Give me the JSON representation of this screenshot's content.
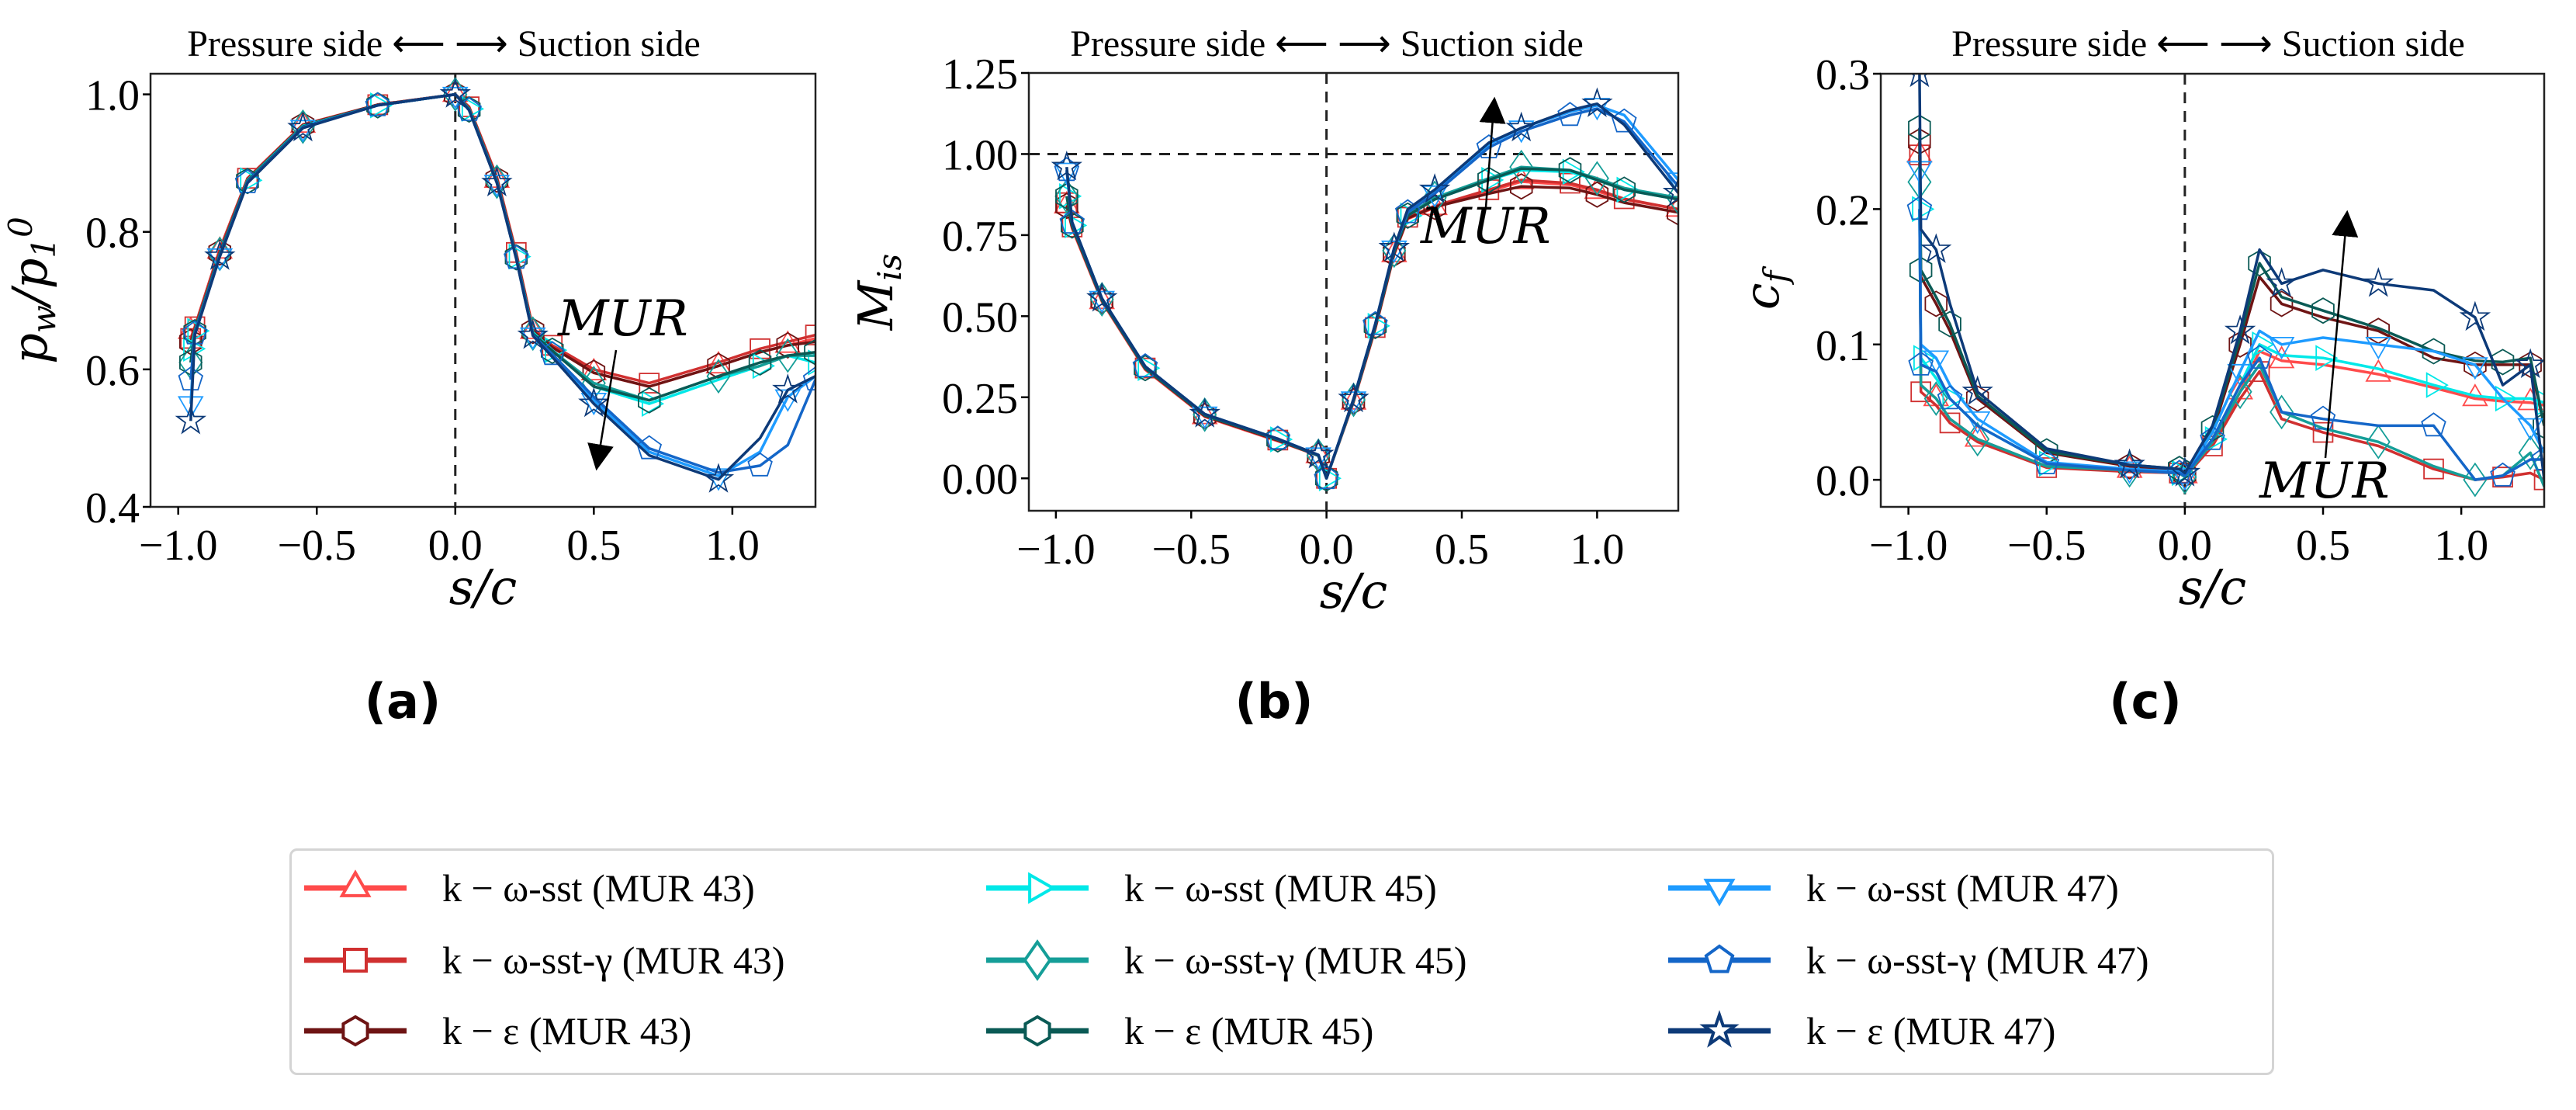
{
  "colors": {
    "sst_43": "#ff4b4b",
    "gamma_43": "#d03030",
    "eps_43": "#6e1414",
    "sst_45": "#00e8e8",
    "gamma_45": "#159e98",
    "eps_45": "#0a5a55",
    "sst_47": "#1e9bff",
    "gamma_47": "#1466c8",
    "eps_47": "#0d3a78"
  },
  "series_meta": [
    {
      "key": "sst_43",
      "label": "k − ω-sst (MUR 43)",
      "marker": "triangle-up"
    },
    {
      "key": "gamma_43",
      "label": "k − ω-sst-γ (MUR 43)",
      "marker": "square"
    },
    {
      "key": "eps_43",
      "label": "k − ε (MUR 43)",
      "marker": "hexagon"
    },
    {
      "key": "sst_45",
      "label": "k − ω-sst (MUR 45)",
      "marker": "triangle-right"
    },
    {
      "key": "gamma_45",
      "label": "k − ω-sst-γ (MUR 45)",
      "marker": "diamond"
    },
    {
      "key": "eps_45",
      "label": "k − ε (MUR 45)",
      "marker": "hexagon"
    },
    {
      "key": "sst_47",
      "label": "k − ω-sst (MUR 47)",
      "marker": "triangle-down"
    },
    {
      "key": "gamma_47",
      "label": "k − ω-sst-γ (MUR 47)",
      "marker": "pentagon"
    },
    {
      "key": "eps_47",
      "label": "k − ε (MUR 47)",
      "marker": "star"
    }
  ],
  "chart_data": [
    {
      "type": "line",
      "panel_label": "(a)",
      "title": "Pressure side ⟵ ⟶ Suction side",
      "xlabel": "s/c",
      "ylabel_parts": [
        [
          "p",
          ""
        ],
        [
          "w",
          "sub"
        ],
        [
          "/p",
          ""
        ],
        [
          "1",
          "sub"
        ],
        [
          "0",
          "sup"
        ]
      ],
      "annotation": "MUR",
      "annotation_direction": "down",
      "xlim": [
        -1.1,
        1.3
      ],
      "ylim": [
        0.4,
        1.03
      ],
      "xticks": [
        {
          "v": -1.0,
          "t": "−1.0"
        },
        {
          "v": -0.5,
          "t": "−0.5"
        },
        {
          "v": 0,
          "t": "0.0"
        },
        {
          "v": 0.5,
          "t": "0.5"
        },
        {
          "v": 1.0,
          "t": "1.0"
        }
      ],
      "yticks": [
        {
          "v": 0.4,
          "t": "0.4"
        },
        {
          "v": 0.6,
          "t": "0.6"
        },
        {
          "v": 0.8,
          "t": "0.8"
        },
        {
          "v": 1.0,
          "t": "1.0"
        }
      ],
      "vline": 0,
      "hline": null,
      "x": [
        -0.955,
        -0.94,
        -0.85,
        -0.75,
        -0.55,
        -0.28,
        0,
        0.05,
        0.15,
        0.22,
        0.28,
        0.35,
        0.5,
        0.7,
        0.95,
        1.1,
        1.2,
        1.3
      ],
      "series": [
        {
          "name": "k − ω-sst (MUR 43)",
          "y": [
            0.655,
            0.66,
            0.772,
            0.877,
            0.955,
            0.985,
            1.0,
            0.98,
            0.875,
            0.765,
            0.655,
            0.632,
            0.595,
            0.575,
            0.605,
            0.625,
            0.635,
            0.645
          ]
        },
        {
          "name": "k − ω-sst-γ (MUR 43)",
          "y": [
            0.645,
            0.662,
            0.775,
            0.878,
            0.956,
            0.985,
            1.0,
            0.982,
            0.88,
            0.77,
            0.66,
            0.635,
            0.6,
            0.58,
            0.61,
            0.63,
            0.64,
            0.65
          ]
        },
        {
          "name": "k − ε (MUR 43)",
          "y": [
            0.64,
            0.658,
            0.77,
            0.876,
            0.955,
            0.985,
            1.0,
            0.98,
            0.876,
            0.766,
            0.656,
            0.632,
            0.595,
            0.575,
            0.605,
            0.625,
            0.635,
            0.64
          ]
        },
        {
          "name": "k − ω-sst (MUR 45)",
          "y": [
            0.63,
            0.656,
            0.768,
            0.875,
            0.954,
            0.984,
            1.0,
            0.979,
            0.874,
            0.764,
            0.654,
            0.628,
            0.575,
            0.55,
            0.585,
            0.605,
            0.62,
            0.61
          ]
        },
        {
          "name": "k − ω-sst-γ (MUR 45)",
          "y": [
            0.61,
            0.655,
            0.768,
            0.874,
            0.953,
            0.984,
            1.0,
            0.978,
            0.873,
            0.763,
            0.652,
            0.627,
            0.58,
            0.555,
            0.59,
            0.605,
            0.62,
            0.62
          ]
        },
        {
          "name": "k − ε (MUR 45)",
          "y": [
            0.61,
            0.654,
            0.767,
            0.874,
            0.953,
            0.984,
            1.0,
            0.978,
            0.873,
            0.763,
            0.652,
            0.627,
            0.575,
            0.555,
            0.59,
            0.61,
            0.62,
            0.625
          ]
        },
        {
          "name": "k − ω-sst (MUR 47)",
          "y": [
            0.55,
            0.652,
            0.765,
            0.872,
            0.952,
            0.984,
            1.0,
            0.977,
            0.872,
            0.762,
            0.65,
            0.62,
            0.555,
            0.48,
            0.445,
            0.48,
            0.56,
            0.59
          ]
        },
        {
          "name": "k − ω-sst-γ (MUR 47)",
          "y": [
            0.585,
            0.652,
            0.765,
            0.872,
            0.952,
            0.984,
            1.0,
            0.977,
            0.872,
            0.762,
            0.65,
            0.622,
            0.56,
            0.485,
            0.45,
            0.46,
            0.49,
            0.585
          ]
        },
        {
          "name": "k − ε (MUR 47)",
          "y": [
            0.525,
            0.65,
            0.764,
            0.871,
            0.951,
            0.984,
            1.0,
            0.977,
            0.871,
            0.761,
            0.649,
            0.618,
            0.55,
            0.475,
            0.44,
            0.5,
            0.57,
            0.59
          ]
        }
      ]
    },
    {
      "type": "line",
      "panel_label": "(b)",
      "title": "Pressure side ⟵ ⟶ Suction side",
      "xlabel": "s/c",
      "ylabel_parts": [
        [
          "M",
          ""
        ],
        [
          "is",
          "sub"
        ]
      ],
      "annotation": "MUR",
      "annotation_direction": "up",
      "xlim": [
        -1.1,
        1.3
      ],
      "ylim": [
        -0.1,
        1.25
      ],
      "xticks": [
        {
          "v": -1.0,
          "t": "−1.0"
        },
        {
          "v": -0.5,
          "t": "−0.5"
        },
        {
          "v": 0,
          "t": "0.0"
        },
        {
          "v": 0.5,
          "t": "0.5"
        },
        {
          "v": 1.0,
          "t": "1.0"
        }
      ],
      "yticks": [
        {
          "v": 0,
          "t": "0.00"
        },
        {
          "v": 0.25,
          "t": "0.25"
        },
        {
          "v": 0.5,
          "t": "0.50"
        },
        {
          "v": 0.75,
          "t": "0.75"
        },
        {
          "v": 1.0,
          "t": "1.00"
        },
        {
          "v": 1.25,
          "t": "1.25"
        }
      ],
      "vline": 0,
      "hline": 1.0,
      "x": [
        -0.96,
        -0.94,
        -0.83,
        -0.67,
        -0.45,
        -0.18,
        -0.03,
        0,
        0.1,
        0.18,
        0.25,
        0.3,
        0.4,
        0.6,
        0.72,
        0.9,
        1.0,
        1.1,
        1.3
      ],
      "series": [
        {
          "name": "k − ω-sst (MUR 43)",
          "y": [
            0.84,
            0.77,
            0.545,
            0.335,
            0.19,
            0.115,
            0.07,
            0.0,
            0.235,
            0.46,
            0.69,
            0.8,
            0.835,
            0.885,
            0.915,
            0.905,
            0.885,
            0.86,
            0.83
          ]
        },
        {
          "name": "k − ω-sst-γ (MUR 43)",
          "y": [
            0.85,
            0.775,
            0.55,
            0.34,
            0.193,
            0.118,
            0.07,
            0.0,
            0.24,
            0.465,
            0.695,
            0.805,
            0.84,
            0.89,
            0.92,
            0.91,
            0.89,
            0.862,
            0.83
          ]
        },
        {
          "name": "k − ε (MUR 43)",
          "y": [
            0.84,
            0.775,
            0.548,
            0.338,
            0.192,
            0.117,
            0.07,
            0.0,
            0.238,
            0.463,
            0.693,
            0.802,
            0.837,
            0.878,
            0.9,
            0.895,
            0.875,
            0.85,
            0.82
          ]
        },
        {
          "name": "k − ω-sst (MUR 45)",
          "y": [
            0.87,
            0.78,
            0.55,
            0.34,
            0.195,
            0.12,
            0.07,
            0.0,
            0.24,
            0.47,
            0.7,
            0.81,
            0.86,
            0.92,
            0.95,
            0.945,
            0.92,
            0.89,
            0.86
          ]
        },
        {
          "name": "k − ω-sst-γ (MUR 45)",
          "y": [
            0.87,
            0.782,
            0.552,
            0.342,
            0.196,
            0.12,
            0.07,
            0.0,
            0.242,
            0.472,
            0.702,
            0.812,
            0.865,
            0.925,
            0.96,
            0.95,
            0.925,
            0.895,
            0.865
          ]
        },
        {
          "name": "k − ε (MUR 45)",
          "y": [
            0.87,
            0.78,
            0.55,
            0.34,
            0.195,
            0.12,
            0.07,
            0.0,
            0.24,
            0.47,
            0.7,
            0.81,
            0.86,
            0.92,
            0.955,
            0.95,
            0.92,
            0.89,
            0.86
          ]
        },
        {
          "name": "k − ω-sst (MUR 47)",
          "y": [
            0.95,
            0.79,
            0.555,
            0.345,
            0.198,
            0.122,
            0.072,
            0.0,
            0.245,
            0.475,
            0.71,
            0.82,
            0.88,
            1.03,
            1.08,
            1.13,
            1.15,
            1.12,
            0.92
          ]
        },
        {
          "name": "k − ω-sst-γ (MUR 47)",
          "y": [
            0.95,
            0.788,
            0.555,
            0.345,
            0.198,
            0.122,
            0.072,
            0.0,
            0.245,
            0.475,
            0.708,
            0.82,
            0.878,
            1.02,
            1.07,
            1.12,
            1.14,
            1.1,
            0.9
          ]
        },
        {
          "name": "k − ε (MUR 47)",
          "y": [
            0.96,
            0.79,
            0.555,
            0.345,
            0.198,
            0.122,
            0.072,
            0.0,
            0.245,
            0.475,
            0.71,
            0.83,
            0.89,
            1.035,
            1.08,
            1.135,
            1.155,
            1.09,
            0.88
          ]
        }
      ]
    },
    {
      "type": "line",
      "panel_label": "(c)",
      "title": "Pressure side ⟵ ⟶ Suction side",
      "xlabel": "s/c",
      "ylabel_parts": [
        [
          "c",
          ""
        ],
        [
          "f",
          "sub"
        ]
      ],
      "annotation": "MUR",
      "annotation_direction": "up",
      "xlim": [
        -1.1,
        1.3
      ],
      "ylim": [
        -0.02,
        0.3
      ],
      "xticks": [
        {
          "v": -1.0,
          "t": "−1.0"
        },
        {
          "v": -0.5,
          "t": "−0.5"
        },
        {
          "v": 0,
          "t": "0.0"
        },
        {
          "v": 0.5,
          "t": "0.5"
        },
        {
          "v": 1.0,
          "t": "1.0"
        }
      ],
      "yticks": [
        {
          "v": 0,
          "t": "0.0"
        },
        {
          "v": 0.1,
          "t": "0.1"
        },
        {
          "v": 0.2,
          "t": "0.2"
        },
        {
          "v": 0.3,
          "t": "0.3"
        }
      ],
      "vline": 0,
      "hline": null,
      "x": [
        -0.96,
        -0.955,
        -0.9,
        -0.85,
        -0.75,
        -0.5,
        -0.2,
        -0.02,
        0,
        0.1,
        0.2,
        0.27,
        0.35,
        0.5,
        0.7,
        0.9,
        1.05,
        1.15,
        1.25,
        1.3
      ],
      "series": [
        {
          "name": "k − ω-sst (MUR 43)",
          "y": [
            0.24,
            0.07,
            0.06,
            0.045,
            0.03,
            0.01,
            0.007,
            0.005,
            0.003,
            0.025,
            0.065,
            0.095,
            0.088,
            0.085,
            0.078,
            0.068,
            0.06,
            0.058,
            0.057,
            0.055
          ]
        },
        {
          "name": "k − ω-sst-γ (MUR 43)",
          "y": [
            0.24,
            0.065,
            0.055,
            0.042,
            0.028,
            0.009,
            0.006,
            0.005,
            0.002,
            0.025,
            0.06,
            0.08,
            0.045,
            0.035,
            0.025,
            0.008,
            0.0,
            0.002,
            0.005,
            0.0
          ]
        },
        {
          "name": "k − ε (MUR 43)",
          "y": [
            0.25,
            0.15,
            0.13,
            0.11,
            0.06,
            0.02,
            0.01,
            0.007,
            0.004,
            0.035,
            0.1,
            0.15,
            0.13,
            0.12,
            0.11,
            0.09,
            0.085,
            0.085,
            0.085,
            0.04
          ]
        },
        {
          "name": "k − ω-sst (MUR 45)",
          "y": [
            0.2,
            0.09,
            0.075,
            0.06,
            0.04,
            0.012,
            0.007,
            0.005,
            0.003,
            0.03,
            0.07,
            0.1,
            0.092,
            0.09,
            0.082,
            0.07,
            0.062,
            0.06,
            0.06,
            0.057
          ]
        },
        {
          "name": "k − ω-sst-γ (MUR 45)",
          "y": [
            0.22,
            0.07,
            0.06,
            0.045,
            0.03,
            0.01,
            0.007,
            0.005,
            0.002,
            0.028,
            0.065,
            0.085,
            0.05,
            0.038,
            0.028,
            0.01,
            0.0,
            0.003,
            0.02,
            -0.005
          ]
        },
        {
          "name": "k − ε (MUR 45)",
          "y": [
            0.26,
            0.155,
            0.135,
            0.115,
            0.062,
            0.021,
            0.011,
            0.008,
            0.004,
            0.038,
            0.105,
            0.16,
            0.135,
            0.125,
            0.112,
            0.095,
            0.088,
            0.087,
            0.09,
            0.04
          ]
        },
        {
          "name": "k − ω-sst (MUR 47)",
          "y": [
            0.23,
            0.1,
            0.09,
            0.07,
            0.045,
            0.013,
            0.008,
            0.006,
            0.003,
            0.035,
            0.08,
            0.11,
            0.1,
            0.105,
            0.1,
            0.095,
            0.085,
            0.06,
            0.04,
            0.02
          ]
        },
        {
          "name": "k − ω-sst-γ (MUR 47)",
          "y": [
            0.2,
            0.085,
            0.08,
            0.06,
            0.04,
            0.012,
            0.007,
            0.005,
            0.003,
            0.03,
            0.07,
            0.09,
            0.05,
            0.045,
            0.04,
            0.04,
            0.0,
            0.003,
            0.015,
            0.015
          ]
        },
        {
          "name": "k − ε (MUR 47)",
          "y": [
            0.3,
            0.185,
            0.17,
            0.13,
            0.065,
            0.023,
            0.011,
            0.008,
            0.005,
            0.04,
            0.11,
            0.17,
            0.145,
            0.155,
            0.145,
            0.14,
            0.12,
            0.07,
            0.085,
            0.0
          ]
        }
      ]
    }
  ]
}
